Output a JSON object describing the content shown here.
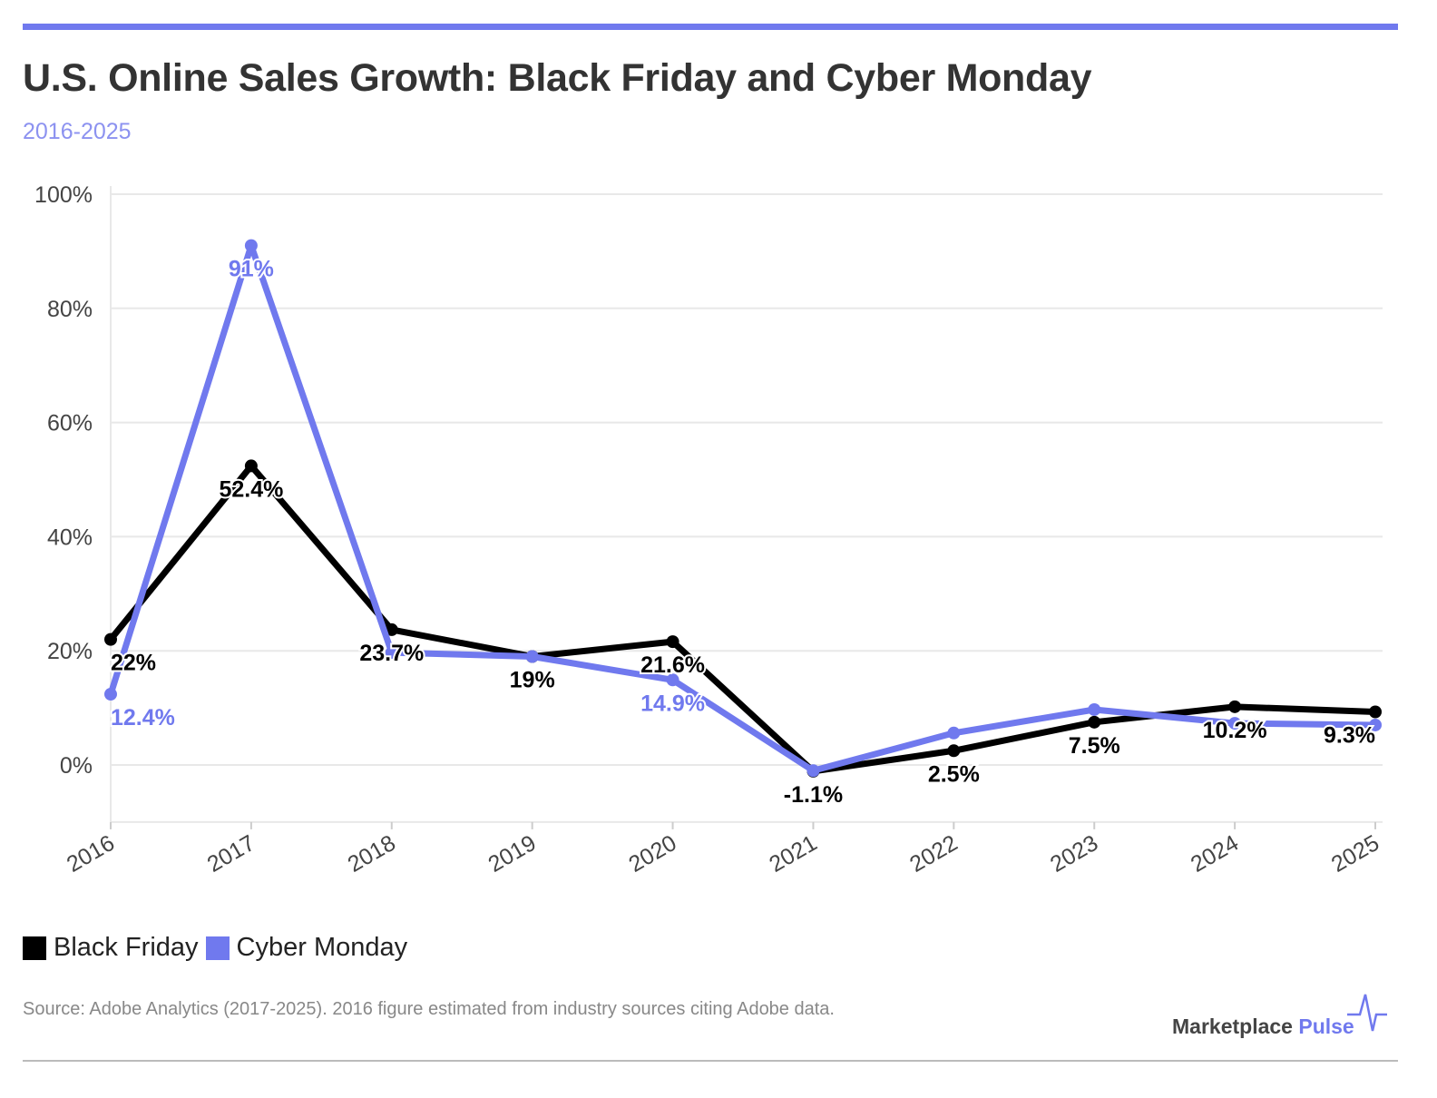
{
  "colors": {
    "accent": "#7079ee",
    "black_friday": "#000000",
    "cyber_monday": "#7079ee"
  },
  "source": "Source: Adobe Analytics (2017-2025). 2016 figure estimated from industry sources citing Adobe data.",
  "logo": {
    "word1": "Marketplace",
    "word2": "Pulse"
  },
  "chart_data": {
    "type": "line",
    "title": "U.S. Online Sales Growth: Black Friday and Cyber Monday",
    "subtitle": "2016-2025",
    "x": [
      "2016",
      "2017",
      "2018",
      "2019",
      "2020",
      "2021",
      "2022",
      "2023",
      "2024",
      "2025"
    ],
    "ylim": [
      -10,
      100
    ],
    "yticks": [
      "0%",
      "20%",
      "40%",
      "60%",
      "80%",
      "100%"
    ],
    "ytick_values": [
      0,
      20,
      40,
      60,
      80,
      100
    ],
    "grid": true,
    "legend": "bottom-left",
    "series": [
      {
        "name": "Black Friday",
        "color": "#000000",
        "values": [
          22,
          52.4,
          23.7,
          19,
          21.6,
          -1.1,
          2.5,
          7.5,
          10.2,
          9.3
        ],
        "labels": [
          "22%",
          "52.4%",
          "23.7%",
          "19%",
          "21.6%",
          "-1.1%",
          "2.5%",
          "7.5%",
          "10.2%",
          "9.3%"
        ]
      },
      {
        "name": "Cyber Monday",
        "color": "#7079ee",
        "values": [
          12.4,
          91,
          19.7,
          19,
          14.9,
          -1,
          5.6,
          9.7,
          7.3,
          7
        ],
        "labels": [
          "12.4%",
          "91%",
          "",
          "",
          "14.9%",
          "",
          "",
          "",
          "",
          ""
        ]
      }
    ]
  }
}
